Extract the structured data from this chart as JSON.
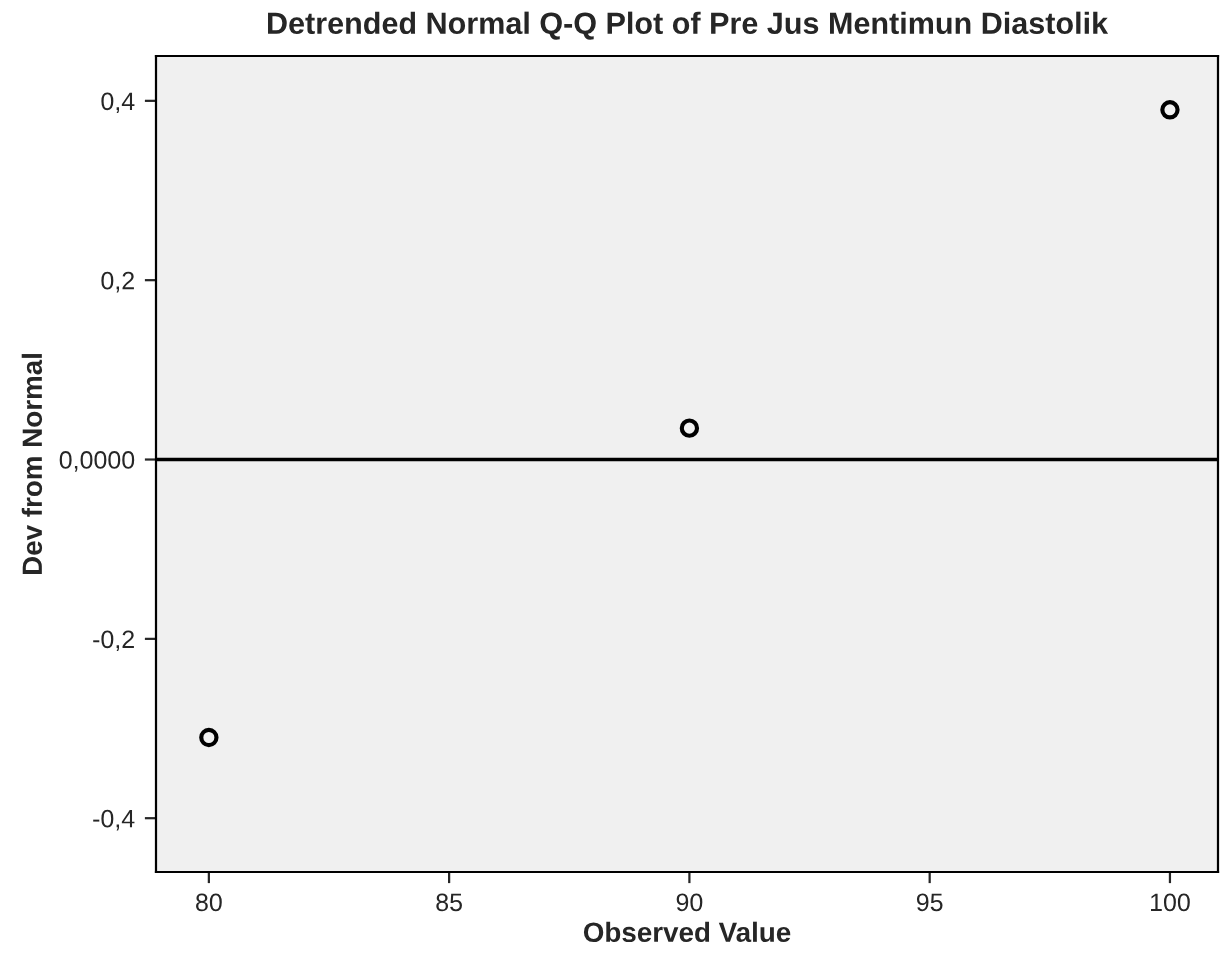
{
  "chart_data": {
    "type": "scatter",
    "title": "Detrended Normal Q-Q Plot of Pre Jus Mentimun Diastolik",
    "xlabel": "Observed Value",
    "ylabel": "Dev from Normal",
    "x": [
      80,
      90,
      100
    ],
    "series": [
      {
        "color": "#000000",
        "values": [
          -0.31,
          0.035,
          0.39
        ]
      }
    ],
    "marker": "circle",
    "xlim": [
      78.9,
      101
    ],
    "xticks": [
      80,
      85,
      90,
      95,
      100
    ],
    "ylim": [
      -0.46,
      0.45
    ],
    "yticks": [
      {
        "value": -0.4,
        "label": "-0,4"
      },
      {
        "value": -0.2,
        "label": "-0,2"
      },
      {
        "value": 0,
        "label": "0,0000"
      },
      {
        "value": 0.2,
        "label": "0,2"
      },
      {
        "value": 0.4,
        "label": "0,4"
      }
    ],
    "ref_lines": [
      {
        "axis": "y",
        "value": 0,
        "label": null,
        "color": "#000000",
        "line_style": "solid"
      }
    ],
    "grid": false,
    "legend": false
  }
}
